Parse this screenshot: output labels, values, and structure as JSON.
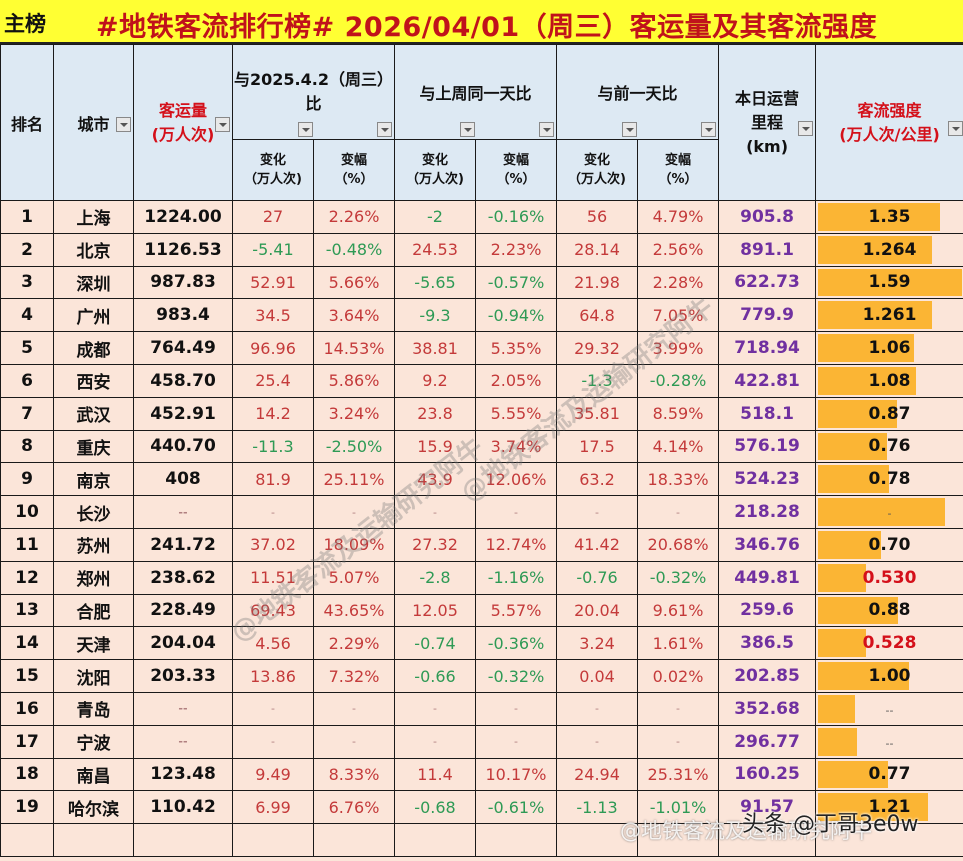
{
  "title": {
    "tag": "主榜",
    "main": "#地铁客流排行榜# 2026/04/01（周三）客运量及其客流强度"
  },
  "headers": {
    "rank": "排名",
    "city": "城市",
    "volume_line1": "客运量",
    "volume_line2": "(万人次)",
    "yoy_line1": "与2025.4.2（周三）",
    "yoy_line2": "比",
    "wow": "与上周同一天比",
    "dod": "与前一天比",
    "mileage_line1": "本日运营",
    "mileage_line2": "里程",
    "mileage_line3": "(km)",
    "intensity_line1": "客流强度",
    "intensity_line2": "(万人次/公里)",
    "change_line1": "变化",
    "change_line2": "（万人次)",
    "pct_line1": "变幅",
    "pct_line2": "（%）"
  },
  "colors": {
    "title_bg": "#ffff33",
    "title_text": "#c0121b",
    "header_bg": "#dde9f3",
    "row_bg": "#fbe5d9",
    "positive": "#c43a3a",
    "negative": "#2e9a55",
    "mileage": "#7030a0",
    "bar": "#fbb534"
  },
  "rows": [
    {
      "rank": "1",
      "city": "上海",
      "volume": "1224.00",
      "yoy_change": "27",
      "yoy_pct": "2.26%",
      "wow_change": "-2",
      "wow_pct": "-0.16%",
      "dod_change": "56",
      "dod_pct": "4.79%",
      "mileage": "905.8",
      "intensity": "1.35",
      "bar": 1.35,
      "intensity_red": false
    },
    {
      "rank": "2",
      "city": "北京",
      "volume": "1126.53",
      "yoy_change": "-5.41",
      "yoy_pct": "-0.48%",
      "wow_change": "24.53",
      "wow_pct": "2.23%",
      "dod_change": "28.14",
      "dod_pct": "2.56%",
      "mileage": "891.1",
      "intensity": "1.264",
      "bar": 1.264,
      "intensity_red": false
    },
    {
      "rank": "3",
      "city": "深圳",
      "volume": "987.83",
      "yoy_change": "52.91",
      "yoy_pct": "5.66%",
      "wow_change": "-5.65",
      "wow_pct": "-0.57%",
      "dod_change": "21.98",
      "dod_pct": "2.28%",
      "mileage": "622.73",
      "intensity": "1.59",
      "bar": 1.59,
      "intensity_red": false
    },
    {
      "rank": "4",
      "city": "广州",
      "volume": "983.4",
      "yoy_change": "34.5",
      "yoy_pct": "3.64%",
      "wow_change": "-9.3",
      "wow_pct": "-0.94%",
      "dod_change": "64.8",
      "dod_pct": "7.05%",
      "mileage": "779.9",
      "intensity": "1.261",
      "bar": 1.261,
      "intensity_red": false
    },
    {
      "rank": "5",
      "city": "成都",
      "volume": "764.49",
      "yoy_change": "96.96",
      "yoy_pct": "14.53%",
      "wow_change": "38.81",
      "wow_pct": "5.35%",
      "dod_change": "29.32",
      "dod_pct": "3.99%",
      "mileage": "718.94",
      "intensity": "1.06",
      "bar": 1.06,
      "intensity_red": false
    },
    {
      "rank": "6",
      "city": "西安",
      "volume": "458.70",
      "yoy_change": "25.4",
      "yoy_pct": "5.86%",
      "wow_change": "9.2",
      "wow_pct": "2.05%",
      "dod_change": "-1.3",
      "dod_pct": "-0.28%",
      "mileage": "422.81",
      "intensity": "1.08",
      "bar": 1.08,
      "intensity_red": false
    },
    {
      "rank": "7",
      "city": "武汉",
      "volume": "452.91",
      "yoy_change": "14.2",
      "yoy_pct": "3.24%",
      "wow_change": "23.8",
      "wow_pct": "5.55%",
      "dod_change": "35.81",
      "dod_pct": "8.59%",
      "mileage": "518.1",
      "intensity": "0.87",
      "bar": 0.87,
      "intensity_red": false
    },
    {
      "rank": "8",
      "city": "重庆",
      "volume": "440.70",
      "yoy_change": "-11.3",
      "yoy_pct": "-2.50%",
      "wow_change": "15.9",
      "wow_pct": "3.74%",
      "dod_change": "17.5",
      "dod_pct": "4.14%",
      "mileage": "576.19",
      "intensity": "0.76",
      "bar": 0.76,
      "intensity_red": false
    },
    {
      "rank": "9",
      "city": "南京",
      "volume": "408",
      "yoy_change": "81.9",
      "yoy_pct": "25.11%",
      "wow_change": "43.9",
      "wow_pct": "12.06%",
      "dod_change": "63.2",
      "dod_pct": "18.33%",
      "mileage": "524.23",
      "intensity": "0.78",
      "bar": 0.78,
      "intensity_red": false
    },
    {
      "rank": "10",
      "city": "长沙",
      "volume": "--",
      "yoy_change": "-",
      "yoy_pct": "-",
      "wow_change": "-",
      "wow_pct": "-",
      "dod_change": "-",
      "dod_pct": "-",
      "mileage": "218.28",
      "intensity": "-",
      "bar": 1.4,
      "intensity_red": false
    },
    {
      "rank": "11",
      "city": "苏州",
      "volume": "241.72",
      "yoy_change": "37.02",
      "yoy_pct": "18.09%",
      "wow_change": "27.32",
      "wow_pct": "12.74%",
      "dod_change": "41.42",
      "dod_pct": "20.68%",
      "mileage": "346.76",
      "intensity": "0.70",
      "bar": 0.7,
      "intensity_red": false
    },
    {
      "rank": "12",
      "city": "郑州",
      "volume": "238.62",
      "yoy_change": "11.51",
      "yoy_pct": "5.07%",
      "wow_change": "-2.8",
      "wow_pct": "-1.16%",
      "dod_change": "-0.76",
      "dod_pct": "-0.32%",
      "mileage": "449.81",
      "intensity": "0.530",
      "bar": 0.53,
      "intensity_red": true
    },
    {
      "rank": "13",
      "city": "合肥",
      "volume": "228.49",
      "yoy_change": "69.43",
      "yoy_pct": "43.65%",
      "wow_change": "12.05",
      "wow_pct": "5.57%",
      "dod_change": "20.04",
      "dod_pct": "9.61%",
      "mileage": "259.6",
      "intensity": "0.88",
      "bar": 0.88,
      "intensity_red": false
    },
    {
      "rank": "14",
      "city": "天津",
      "volume": "204.04",
      "yoy_change": "4.56",
      "yoy_pct": "2.29%",
      "wow_change": "-0.74",
      "wow_pct": "-0.36%",
      "dod_change": "3.24",
      "dod_pct": "1.61%",
      "mileage": "386.5",
      "intensity": "0.528",
      "bar": 0.528,
      "intensity_red": true
    },
    {
      "rank": "15",
      "city": "沈阳",
      "volume": "203.33",
      "yoy_change": "13.86",
      "yoy_pct": "7.32%",
      "wow_change": "-0.66",
      "wow_pct": "-0.32%",
      "dod_change": "0.04",
      "dod_pct": "0.02%",
      "mileage": "202.85",
      "intensity": "1.00",
      "bar": 1.0,
      "intensity_red": false
    },
    {
      "rank": "16",
      "city": "青岛",
      "volume": "--",
      "yoy_change": "-",
      "yoy_pct": "-",
      "wow_change": "-",
      "wow_pct": "-",
      "dod_change": "-",
      "dod_pct": "-",
      "mileage": "352.68",
      "intensity": "--",
      "bar": 0.41,
      "intensity_red": false
    },
    {
      "rank": "17",
      "city": "宁波",
      "volume": "--",
      "yoy_change": "-",
      "yoy_pct": "-",
      "wow_change": "-",
      "wow_pct": "-",
      "dod_change": "-",
      "dod_pct": "-",
      "mileage": "296.77",
      "intensity": "--",
      "bar": 0.43,
      "intensity_red": false
    },
    {
      "rank": "18",
      "city": "南昌",
      "volume": "123.48",
      "yoy_change": "9.49",
      "yoy_pct": "8.33%",
      "wow_change": "11.4",
      "wow_pct": "10.17%",
      "dod_change": "24.94",
      "dod_pct": "25.31%",
      "mileage": "160.25",
      "intensity": "0.77",
      "bar": 0.77,
      "intensity_red": false
    },
    {
      "rank": "19",
      "city": "哈尔滨",
      "volume": "110.42",
      "yoy_change": "6.99",
      "yoy_pct": "6.76%",
      "wow_change": "-0.68",
      "wow_pct": "-0.61%",
      "dod_change": "-1.13",
      "dod_pct": "-1.01%",
      "mileage": "91.57",
      "intensity": "1.21",
      "bar": 1.21,
      "intensity_red": false
    }
  ],
  "watermarks": {
    "weibo": "@地铁客流及运输研究阿牛",
    "toutiao": "头条 @丁哥3e0w",
    "diagonal": "@地铁客流及运输研究阿牛"
  }
}
